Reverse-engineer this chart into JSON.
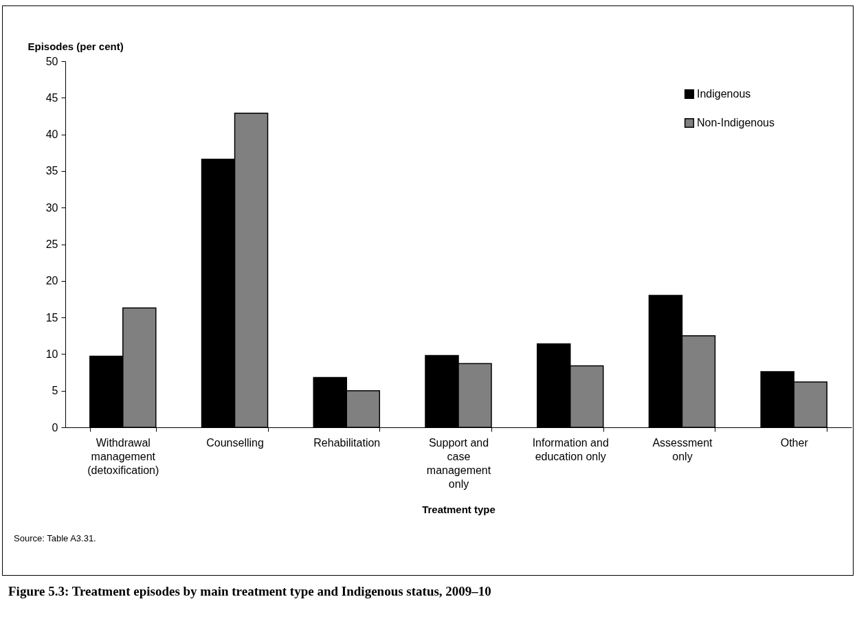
{
  "chart_data": {
    "type": "bar",
    "title": "Figure 5.3: Treatment episodes by main treatment type and Indigenous status, 2009–10",
    "xlabel": "Treatment type",
    "ylabel": "Episodes (per cent)",
    "annotations": [
      "Source: Table A3.31."
    ],
    "categories": [
      "Withdrawal management (detoxification)",
      "Counselling",
      "Rehabilitation",
      "Support and case management only",
      "Information and education only",
      "Assessment only",
      "Other"
    ],
    "series": [
      {
        "name": "Indigenous",
        "color": "#000000",
        "values": [
          9.7,
          36.6,
          6.8,
          9.8,
          11.4,
          18.0,
          7.6
        ]
      },
      {
        "name": "Non-Indigenous",
        "color": "#808080",
        "values": [
          16.3,
          42.9,
          5.0,
          8.7,
          8.4,
          12.5,
          6.2
        ]
      }
    ],
    "ylim": [
      0,
      50
    ],
    "yticks": [
      0,
      5,
      10,
      15,
      20,
      25,
      30,
      35,
      40,
      45,
      50
    ],
    "legend": "top right"
  }
}
